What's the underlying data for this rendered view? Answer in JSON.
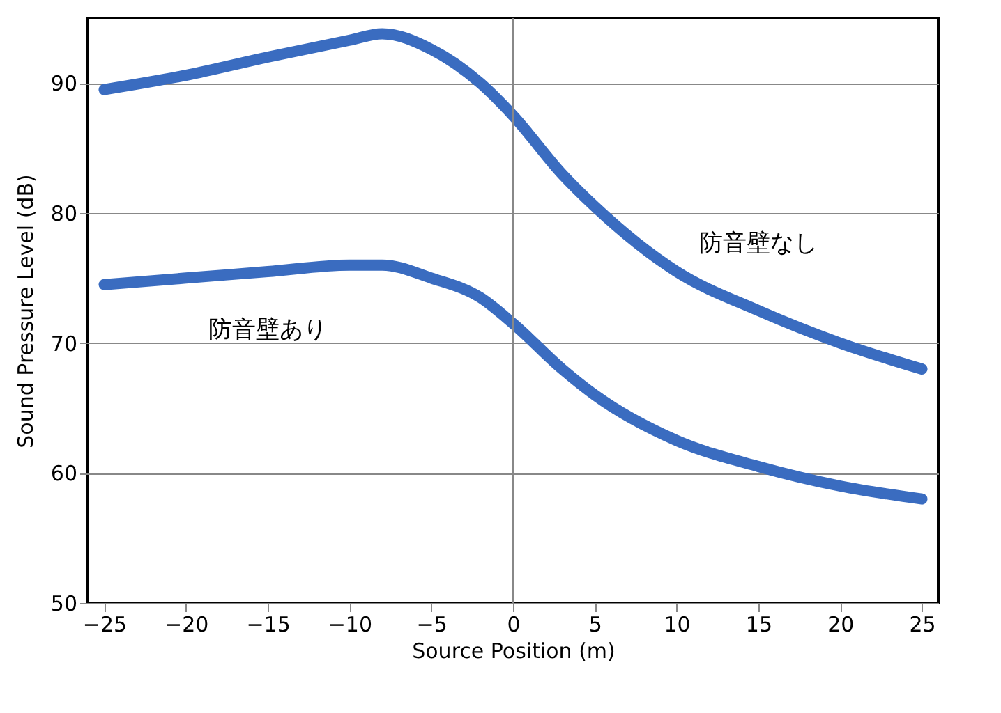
{
  "chart_data": {
    "type": "line",
    "xlabel": "Source Position (m)",
    "ylabel": "Sound Pressure Level (dB)",
    "xlim": [
      -26,
      26
    ],
    "xticks": [
      -25,
      -20,
      -15,
      -10,
      -5,
      0,
      5,
      10,
      15,
      20,
      25
    ],
    "ylim": [
      50,
      95
    ],
    "yticks": [
      50,
      60,
      70,
      80,
      90
    ],
    "grid": "y",
    "legend": false,
    "line_style": "solid",
    "series": [
      {
        "name": "防音壁なし",
        "color": "#3a6cc0",
        "x": [
          -25,
          -20,
          -15,
          -10,
          -8,
          -5,
          -2,
          0,
          3,
          5,
          10,
          15,
          20,
          25
        ],
        "values": [
          89.5,
          90.6,
          92,
          93.3,
          93.8,
          92.6,
          90,
          87.5,
          83,
          80.5,
          75.5,
          72.5,
          70,
          68
        ]
      },
      {
        "name": "防音壁あり",
        "color": "#3a6cc0",
        "x": [
          -25,
          -20,
          -15,
          -10,
          -8,
          -5,
          -2,
          0,
          3,
          5,
          10,
          15,
          20,
          25
        ],
        "values": [
          74.5,
          75,
          75.5,
          76,
          76,
          75,
          73.5,
          71.5,
          68,
          66,
          62.5,
          60.5,
          59,
          58
        ]
      }
    ],
    "ref_lines": [
      {
        "axis": "x",
        "value": 0,
        "color": "#888888"
      }
    ]
  }
}
